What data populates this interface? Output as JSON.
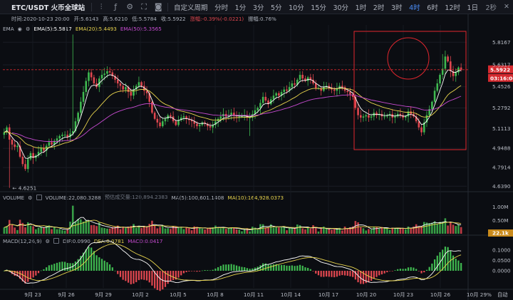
{
  "toolbar": {
    "title": "ETC/USDT 火币全球站",
    "custom_period": "自定义周期",
    "periods": [
      "分时",
      "1分",
      "3分",
      "5分",
      "10分",
      "15分",
      "30分",
      "1时",
      "2时",
      "3时",
      "4时",
      "6时",
      "12时",
      "1日"
    ],
    "active_period": "4时",
    "right_period": "2秒",
    "accent_color": "#4a8cf7"
  },
  "info_bar": {
    "time": "时间:2020-10-23 20:00",
    "open": "开:5.6143",
    "high": "高:5.6210",
    "low": "低:5.5784",
    "close": "收:5.5922",
    "change": "涨幅:-0.39%(-0.0221)",
    "amplitude": "振幅:0.76%"
  },
  "ema_legend": {
    "name": "EMA",
    "ema5": "EMA(5):5.5817",
    "ema20": "EMA(20):5.4493",
    "ema50": "EMA(50):5.3565"
  },
  "volume_legend": {
    "name": "VOLUME",
    "volume": "VOLUME:22,080.3288",
    "estimate": "预估成交量:120,894.2383",
    "ma5": "MA(5):100,601.1408",
    "ma10": "MA(10):164,928.0373"
  },
  "macd_legend": {
    "name": "MACD(12,26,9)",
    "dif": "DIF:0.0990",
    "dea": "DEA:0.0781",
    "macd": "MACD:0.0417"
  },
  "price_axis": {
    "ticks": [
      "5.8167",
      "5.6317",
      "5.4526",
      "5.2792",
      "5.1113",
      "4.9488",
      "4.7914",
      "4.6390"
    ],
    "current_price": "5.5922",
    "countdown": "03:16:06",
    "min_label": "4.6251"
  },
  "volume_axis": {
    "ticks": [
      "1.00M",
      "0.50M"
    ],
    "current": "22.1k"
  },
  "macd_axis": {
    "ticks": [
      "0.1000",
      "0.0500",
      "0.0000"
    ]
  },
  "time_axis": {
    "ticks": [
      "9月 23",
      "9月 26",
      "9月 29",
      "10月 2",
      "10月 5",
      "10月 8",
      "10月 11",
      "10月 14",
      "10月 17",
      "10月 20",
      "10月 23",
      "10月 26",
      "10月 29"
    ],
    "zoom": "%",
    "auto": "自动"
  },
  "colors": {
    "up": "#3fb950",
    "down": "#e0474f",
    "ema5": "#ffffff",
    "ema20": "#e8d44d",
    "ema50": "#c74bd1",
    "annotation": "#e0262e",
    "tag": "#d52a2f"
  },
  "chart_data": {
    "type": "candlestick",
    "symbol": "ETC/USDT",
    "interval": "4h",
    "x_range": [
      "2020-09-21",
      "2020-10-24"
    ],
    "ylim": [
      4.6,
      5.9
    ],
    "closes": [
      5.08,
      5.12,
      5.02,
      4.98,
      4.96,
      4.97,
      4.88,
      4.82,
      4.78,
      4.86,
      4.91,
      4.87,
      4.89,
      4.92,
      4.95,
      4.93,
      4.97,
      5.0,
      4.98,
      5.01,
      5.03,
      5.05,
      5.06,
      5.06,
      5.04,
      5.07,
      5.09,
      5.17,
      5.24,
      5.33,
      5.41,
      5.5,
      5.57,
      5.53,
      5.48,
      5.45,
      5.52,
      5.55,
      5.56,
      5.58,
      5.57,
      5.54,
      5.51,
      5.48,
      5.46,
      5.43,
      5.45,
      5.41,
      5.38,
      5.43,
      5.46,
      5.49,
      5.46,
      5.42,
      5.4,
      5.33,
      5.24,
      5.19,
      5.16,
      5.13,
      5.17,
      5.19,
      5.22,
      5.21,
      5.17,
      5.14,
      5.18,
      5.2,
      5.21,
      5.19,
      5.18,
      5.17,
      5.15,
      5.13,
      5.14,
      5.16,
      5.15,
      5.13,
      5.12,
      5.14,
      5.17,
      5.19,
      5.21,
      5.23,
      5.21,
      5.22,
      5.24,
      5.22,
      5.21,
      5.21,
      5.21,
      5.22,
      5.2,
      5.2,
      5.23,
      5.26,
      5.28,
      5.32,
      5.37,
      5.34,
      5.31,
      5.35,
      5.38,
      5.4,
      5.38,
      5.41,
      5.43,
      5.42,
      5.45,
      5.48,
      5.47,
      5.51,
      5.55,
      5.52,
      5.5,
      5.53,
      5.51,
      5.48,
      5.44,
      5.44,
      5.42,
      5.45,
      5.46,
      5.44,
      5.43,
      5.42,
      5.44,
      5.46,
      5.45,
      5.42,
      5.41,
      5.39,
      5.37,
      5.28,
      5.22,
      5.2,
      5.21,
      5.22,
      5.2,
      5.21,
      5.24,
      5.22,
      5.23,
      5.21,
      5.21,
      5.22,
      5.23,
      5.2,
      5.21,
      5.23,
      5.22,
      5.2,
      5.21,
      5.25,
      5.23,
      5.21,
      5.17,
      5.12,
      5.08,
      5.16,
      5.22,
      5.27,
      5.33,
      5.42,
      5.48,
      5.55,
      5.6,
      5.7,
      5.66,
      5.58,
      5.54,
      5.57,
      5.61,
      5.59
    ]
  }
}
